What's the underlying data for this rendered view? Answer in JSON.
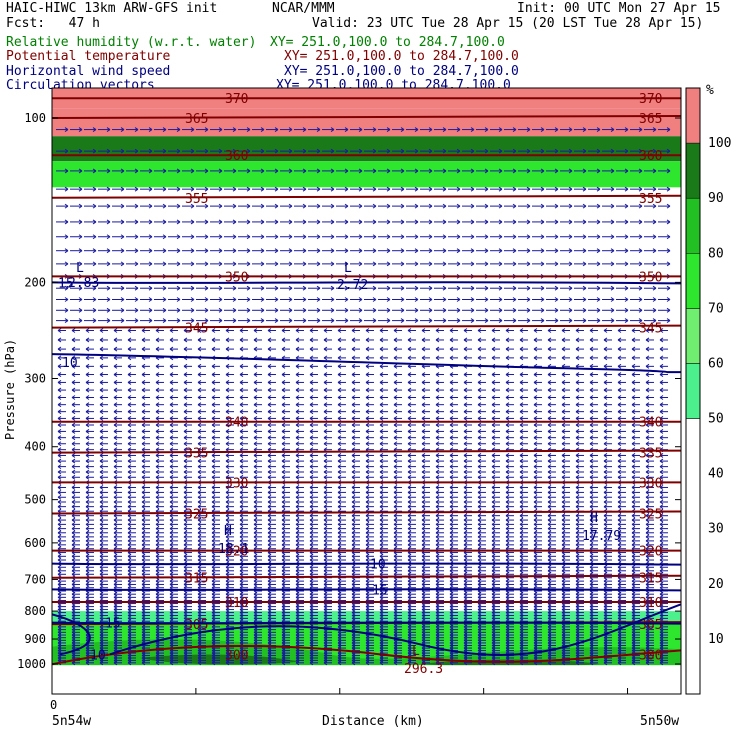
{
  "header": {
    "model": "HAIC-HIWC 13km ARW-GFS init",
    "org": "NCAR/MMM",
    "init": "Init: 00 UTC Mon 27 Apr 15",
    "fcst": "Fcst:   47 h",
    "valid": "Valid: 23 UTC Tue 28 Apr 15 (20 LST Tue 28 Apr 15)",
    "fields": [
      {
        "name": "Relative humidity (w.r.t. water)",
        "xy": "XY= 251.0,100.0 to 284.7,100.0",
        "color": "#008000"
      },
      {
        "name": "Potential temperature",
        "xy": "XY= 251.0,100.0 to 284.7,100.0",
        "color": "#800000"
      },
      {
        "name": "Horizontal wind speed",
        "xy": "XY= 251.0,100.0 to 284.7,100.0",
        "color": "#000080"
      },
      {
        "name": "Circulation vectors",
        "xy": "XY= 251.0,100.0 to 284.7,100.0",
        "color": "#000080"
      }
    ]
  },
  "chart_data": {
    "type": "cross-section",
    "ylabel": "Pressure (hPa)",
    "xlabel": "Distance (km)",
    "y_scale": "log",
    "ylim": [
      1050,
      80
    ],
    "yticks": [
      100,
      200,
      300,
      400,
      500,
      600,
      700,
      800,
      900,
      1000
    ],
    "xticks": [
      "0"
    ],
    "x_end_labels": [
      "5n54w",
      "5n50w"
    ],
    "colorbar": {
      "unit": "%",
      "ticks": [
        10,
        20,
        30,
        40,
        50,
        60,
        70,
        80,
        90,
        100
      ],
      "levels": [
        {
          "from": 0,
          "to": 50,
          "color": "#ffffff"
        },
        {
          "from": 50,
          "to": 60,
          "color": "#4cf08c"
        },
        {
          "from": 60,
          "to": 70,
          "color": "#70ee70"
        },
        {
          "from": 70,
          "to": 80,
          "color": "#2ee62e"
        },
        {
          "from": 80,
          "to": 90,
          "color": "#22c022"
        },
        {
          "from": 90,
          "to": 100,
          "color": "#1a7a1a"
        },
        {
          "from": 100,
          "to": 110,
          "color": "#f08080"
        }
      ]
    },
    "theta_contours": [
      {
        "value": "300",
        "p": 960
      },
      {
        "value": "305",
        "p": 845
      },
      {
        "value": "310",
        "p": 770
      },
      {
        "value": "315",
        "p": 695
      },
      {
        "value": "320",
        "p": 620
      },
      {
        "value": "325",
        "p": 530
      },
      {
        "value": "330",
        "p": 465
      },
      {
        "value": "335",
        "p": 410
      },
      {
        "value": "340",
        "p": 360
      },
      {
        "value": "345",
        "p": 242
      },
      {
        "value": "350",
        "p": 195
      },
      {
        "value": "355",
        "p": 140
      },
      {
        "value": "360",
        "p": 117
      },
      {
        "value": "365",
        "p": 100
      },
      {
        "value": "370",
        "p": 92
      }
    ],
    "wind_contours": [
      {
        "value": "10",
        "p": 655
      },
      {
        "value": "15",
        "p": 730
      },
      {
        "value": "15",
        "p": 840
      },
      {
        "value": "10",
        "p": 280
      },
      {
        "value": "15",
        "p": 200
      },
      {
        "value": "10",
        "p": 960
      }
    ],
    "extrema": [
      {
        "type": "L",
        "value": "2.83"
      },
      {
        "type": "L",
        "value": "2.72"
      },
      {
        "type": "H",
        "value": "18.1"
      },
      {
        "type": "H",
        "value": "17.79"
      },
      {
        "type": "L",
        "value": "296.3"
      }
    ]
  }
}
